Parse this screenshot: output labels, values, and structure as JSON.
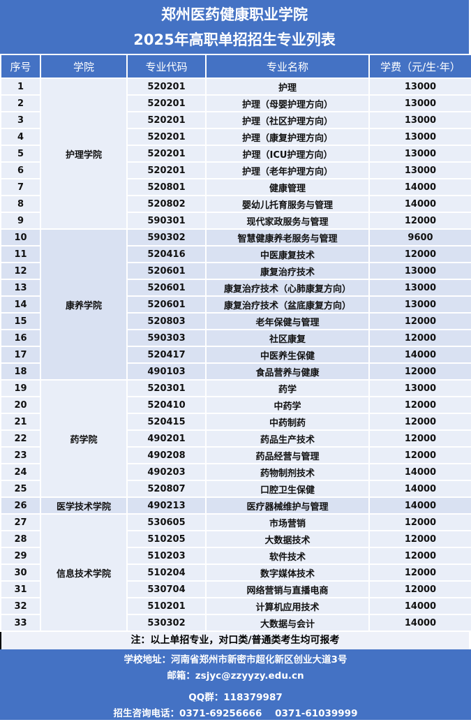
{
  "title": {
    "line1": "郑州医药健康职业学院",
    "line2": "2025年高职单招招生专业列表"
  },
  "headers": [
    "序号",
    "学院",
    "专业代码",
    "专业名称",
    "学费（元/生·年）"
  ],
  "groups": [
    {
      "college": "护理学院",
      "shade": "light",
      "rows": [
        [
          "1",
          "520201",
          "护理",
          "13000"
        ],
        [
          "2",
          "520201",
          "护理（母婴护理方向）",
          "13000"
        ],
        [
          "3",
          "520201",
          "护理（社区护理方向）",
          "13000"
        ],
        [
          "4",
          "520201",
          "护理（康复护理方向）",
          "13000"
        ],
        [
          "5",
          "520201",
          "护理（ICU护理方向）",
          "13000"
        ],
        [
          "6",
          "520201",
          "护理（老年护理方向）",
          "13000"
        ],
        [
          "7",
          "520801",
          "健康管理",
          "14000"
        ],
        [
          "8",
          "520802",
          "婴幼儿托育服务与管理",
          "14000"
        ],
        [
          "9",
          "590301",
          "现代家政服务与管理",
          "12000"
        ]
      ]
    },
    {
      "college": "康养学院",
      "shade": "dark",
      "rows": [
        [
          "10",
          "590302",
          "智慧健康养老服务与管理",
          "9600"
        ],
        [
          "11",
          "520416",
          "中医康复技术",
          "12000"
        ],
        [
          "12",
          "520601",
          "康复治疗技术",
          "13000"
        ],
        [
          "13",
          "520601",
          "康复治疗技术（心肺康复方向）",
          "13000"
        ],
        [
          "14",
          "520601",
          "康复治疗技术（盆底康复方向）",
          "13000"
        ],
        [
          "15",
          "520803",
          "老年保健与管理",
          "12000"
        ],
        [
          "16",
          "590303",
          "社区康复",
          "12000"
        ],
        [
          "17",
          "520417",
          "中医养生保健",
          "14000"
        ],
        [
          "18",
          "490103",
          "食品营养与健康",
          "12000"
        ]
      ]
    },
    {
      "college": "药学院",
      "shade": "light",
      "rows": [
        [
          "19",
          "520301",
          "药学",
          "13000"
        ],
        [
          "20",
          "520410",
          "中药学",
          "12000"
        ],
        [
          "21",
          "520415",
          "中药制药",
          "12000"
        ],
        [
          "22",
          "490201",
          "药品生产技术",
          "12000"
        ],
        [
          "23",
          "490208",
          "药品经营与管理",
          "12000"
        ],
        [
          "24",
          "490203",
          "药物制剂技术",
          "14000"
        ],
        [
          "25",
          "520807",
          "口腔卫生保健",
          "14000"
        ]
      ]
    },
    {
      "college": "医学技术学院",
      "shade": "dark",
      "rows": [
        [
          "26",
          "490213",
          "医疗器械维护与管理",
          "14000"
        ]
      ]
    },
    {
      "college": "信息技术学院",
      "shade": "light",
      "rows": [
        [
          "27",
          "530605",
          "市场营销",
          "12000"
        ],
        [
          "28",
          "510205",
          "大数据技术",
          "12000"
        ],
        [
          "29",
          "510203",
          "软件技术",
          "12000"
        ],
        [
          "30",
          "510204",
          "数字媒体技术",
          "12000"
        ],
        [
          "31",
          "530704",
          "网络营销与直播电商",
          "12000"
        ],
        [
          "32",
          "510201",
          "计算机应用技术",
          "14000"
        ],
        [
          "33",
          "530302",
          "大数据与会计",
          "14000"
        ]
      ]
    }
  ],
  "note": "注：以上单招专业，对口类/普通类考生均可报考",
  "footer": {
    "address": "学校地址：河南省郑州市新密市超化新区创业大道3号",
    "email": "邮箱：zsjyc@zzyyzy.edu.cn",
    "qq": "QQ群：118379987",
    "phone": "招生咨询电话：0371-69256666    0371-61039999"
  },
  "colors": {
    "header": "#4472c4",
    "row_light": "#e9eef8",
    "row_dark": "#d9e1f2"
  }
}
